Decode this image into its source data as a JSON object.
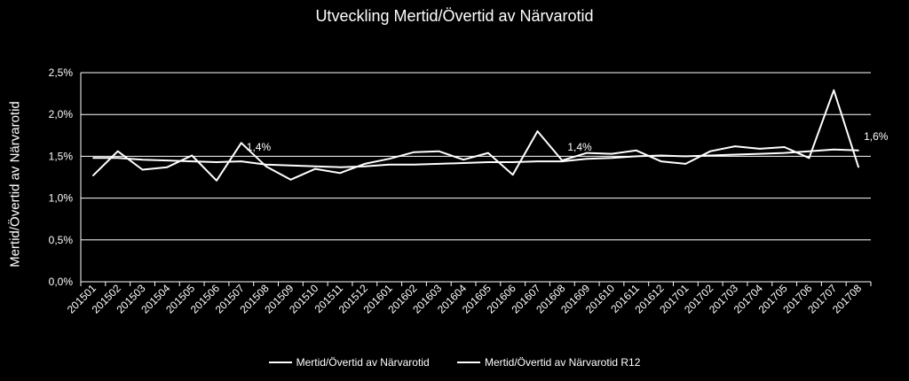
{
  "chart_data": {
    "type": "line",
    "title": "Utveckling Mertid/Övertid av Närvarotid",
    "ylabel": "Mertid/Övertid av Närvarotid",
    "xlabel": "",
    "ylim": [
      0,
      2.5
    ],
    "yticks": [
      "0,0%",
      "0,5%",
      "1,0%",
      "1,5%",
      "2,0%",
      "2,5%"
    ],
    "grid": true,
    "legend_position": "bottom",
    "colors": {
      "background": "#000000",
      "line": "#ffffff",
      "grid": "#ffffff"
    },
    "categories": [
      "201501",
      "201502",
      "201503",
      "201504",
      "201505",
      "201506",
      "201507",
      "201508",
      "201509",
      "201510",
      "201511",
      "201512",
      "201601",
      "201602",
      "201603",
      "201604",
      "201605",
      "201606",
      "201607",
      "201608",
      "201609",
      "201610",
      "201611",
      "201612",
      "201701",
      "201702",
      "201703",
      "201704",
      "201705",
      "201706",
      "201707",
      "201708"
    ],
    "series": [
      {
        "name": "Mertid/Övertid av Närvarotid",
        "values": [
          1.27,
          1.56,
          1.34,
          1.37,
          1.51,
          1.21,
          1.66,
          1.38,
          1.22,
          1.35,
          1.3,
          1.41,
          1.47,
          1.55,
          1.56,
          1.46,
          1.54,
          1.28,
          1.8,
          1.45,
          1.54,
          1.53,
          1.57,
          1.44,
          1.41,
          1.56,
          1.62,
          1.59,
          1.61,
          1.48,
          2.29,
          1.37
        ]
      },
      {
        "name": "Mertid/Övertid av Närvarotid R12",
        "values": [
          1.48,
          1.48,
          1.46,
          1.45,
          1.44,
          1.43,
          1.44,
          1.4,
          1.39,
          1.38,
          1.37,
          1.38,
          1.4,
          1.4,
          1.41,
          1.42,
          1.43,
          1.43,
          1.44,
          1.44,
          1.47,
          1.48,
          1.5,
          1.51,
          1.5,
          1.51,
          1.52,
          1.53,
          1.54,
          1.56,
          1.58,
          1.57
        ]
      }
    ],
    "annotations": [
      {
        "category": "201507",
        "text": "1,4%"
      },
      {
        "category": "201608",
        "text": "1,4%"
      },
      {
        "category": "201708",
        "text": "1,6%"
      }
    ]
  }
}
